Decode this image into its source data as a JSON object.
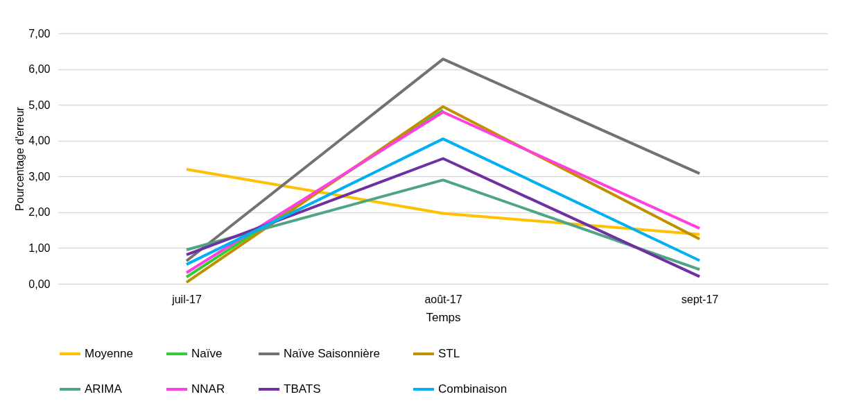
{
  "chart_data": {
    "type": "line",
    "xlabel": "Temps",
    "ylabel": "Pourcentage d'erreur",
    "categories": [
      "juil-17",
      "août-17",
      "sept-17"
    ],
    "ylim": [
      0,
      7
    ],
    "yticks": [
      {
        "value": 0,
        "label": "0,00"
      },
      {
        "value": 1,
        "label": "1,00"
      },
      {
        "value": 2,
        "label": "2,00"
      },
      {
        "value": 3,
        "label": "3,00"
      },
      {
        "value": 4,
        "label": "4,00"
      },
      {
        "value": 5,
        "label": "5,00"
      },
      {
        "value": 6,
        "label": "6,00"
      },
      {
        "value": 7,
        "label": "7,00"
      }
    ],
    "grid": "y",
    "legend": "bottom",
    "marker": "none",
    "series": [
      {
        "name": "Moyenne",
        "color": "#ffc000",
        "values": [
          3.2,
          1.97,
          1.38
        ]
      },
      {
        "name": "Naïve",
        "color": "#33cc33",
        "values": [
          0.19,
          4.85,
          null
        ]
      },
      {
        "name": "Naïve Saisonnière",
        "color": "#767171",
        "values": [
          0.64,
          6.28,
          3.08
        ]
      },
      {
        "name": "STL",
        "color": "#bf9000",
        "values": [
          0.04,
          4.95,
          1.25
        ]
      },
      {
        "name": "ARIMA",
        "color": "#4ea584",
        "values": [
          0.95,
          2.9,
          0.4
        ]
      },
      {
        "name": "NNAR",
        "color": "#ff3fe0",
        "values": [
          0.31,
          4.8,
          1.55
        ]
      },
      {
        "name": "TBATS",
        "color": "#7030a0",
        "values": [
          0.81,
          3.5,
          0.2
        ]
      },
      {
        "name": "Combinaison",
        "color": "#00b0f0",
        "values": [
          0.54,
          4.05,
          0.65
        ]
      }
    ]
  }
}
